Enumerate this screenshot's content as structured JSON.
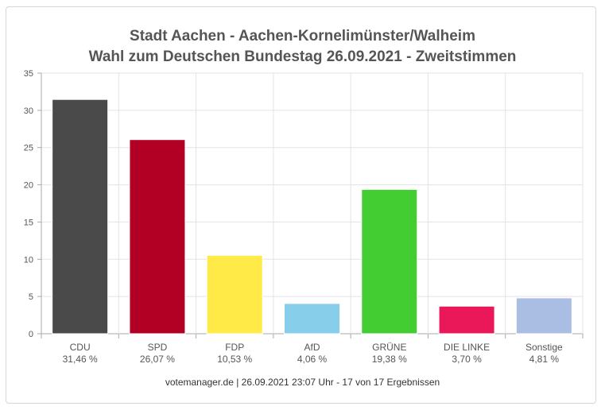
{
  "chart_data": {
    "type": "bar",
    "title": "Stadt Aachen - Aachen-Kornelimünster/Walheim",
    "subtitle": "Wahl zum Deutschen Bundestag 26.09.2021  - Zweitstimmen",
    "categories": [
      "CDU",
      "SPD",
      "FDP",
      "AfD",
      "GRÜNE",
      "DIE LINKE",
      "Sonstige"
    ],
    "value_labels": [
      "31,46 %",
      "26,07 %",
      "10,53 %",
      "4,06 %",
      "19,38 %",
      "3,70 %",
      "4,81 %"
    ],
    "values": [
      31.46,
      26.07,
      10.53,
      4.06,
      19.38,
      3.7,
      4.81
    ],
    "colors": [
      "#4a4a4a",
      "#b10024",
      "#ffea47",
      "#87ceeb",
      "#43cd33",
      "#ea1859",
      "#aabde3"
    ],
    "ylim": [
      0,
      35
    ],
    "yticks": [
      0,
      5,
      10,
      15,
      20,
      25,
      30,
      35
    ],
    "grid": true,
    "xlabel": "",
    "ylabel": ""
  },
  "footer": "votemanager.de | 26.09.2021 23:07 Uhr - 17 von 17 Ergebnissen"
}
